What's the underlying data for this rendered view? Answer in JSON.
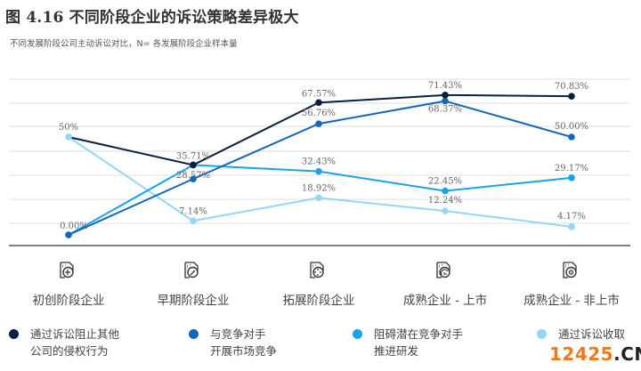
{
  "header": {
    "title": "图 4.16 不同阶段企业的诉讼策略差异极大",
    "subtitle": "不同发展阶段公司主动诉讼对比，N= 各发展阶段企业样本量"
  },
  "chart_data": {
    "type": "line",
    "title": "图 4.16 不同阶段企业的诉讼策略差异极大",
    "subtitle": "不同发展阶段公司主动诉讼对比，N= 各发展阶段企业样本量",
    "xlabel": "",
    "ylabel": "",
    "grid": true,
    "legend_position": "bottom",
    "ylim": [
      -5.5,
      80
    ],
    "categories": [
      "初创阶段企业",
      "早期阶段企业",
      "拓展阶段企业",
      "成熟企业 - 上市",
      "成熟企业 - 非上市"
    ],
    "category_icons": [
      "document-plus-icon",
      "document-edit-icon",
      "document-expand-icon",
      "document-chart-icon",
      "document-target-icon"
    ],
    "series": [
      {
        "name": "通过诉讼阻止其他\n公司的侵权行为",
        "color": "#0d1f3c",
        "values": [
          50,
          35.71,
          67.57,
          71.43,
          70.83
        ],
        "labels": [
          "",
          "35.71%",
          "67.57%",
          "71.43%",
          "70.83%"
        ]
      },
      {
        "name": "与竞争对手\n开展市场竞争",
        "color": "#1466b8",
        "values": [
          0,
          28.57,
          56.76,
          68.37,
          50.0
        ],
        "labels": [
          "0.00%",
          "28.57%",
          "56.76%",
          "68.37%",
          "50.00%"
        ]
      },
      {
        "name": "阻碍潜在竞争对手\n推进研发",
        "color": "#1aa3e8",
        "values": [
          0,
          35.71,
          32.43,
          22.45,
          29.17
        ],
        "labels": [
          "",
          "",
          "32.43%",
          "22.45%",
          "29.17%"
        ]
      },
      {
        "name": "通过诉讼收取\n许可费",
        "color": "#94d6f5",
        "values": [
          50,
          7.14,
          18.92,
          12.24,
          4.17
        ],
        "labels": [
          "50%",
          "7.14%",
          "18.92%",
          "12.24%",
          "4.17%"
        ]
      }
    ]
  },
  "legend": [
    {
      "label": "通过诉讼阻止其他\n公司的侵权行为",
      "color": "#0d1f3c"
    },
    {
      "label": "与竞争对手\n开展市场竞争",
      "color": "#1466b8"
    },
    {
      "label": "阻碍潜在竞争对手\n推进研发",
      "color": "#1aa3e8"
    },
    {
      "label": "通过诉讼收取",
      "color": "#94d6f5"
    }
  ],
  "watermark": {
    "num": "12425",
    "dom": ".CN"
  }
}
